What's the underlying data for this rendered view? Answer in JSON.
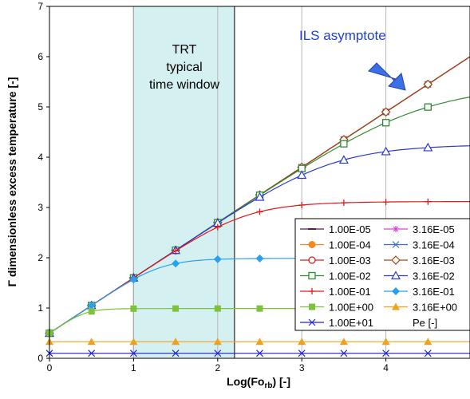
{
  "chart_data": {
    "type": "line",
    "xlabel": "Log(Fo",
    "xlabel_sub": "rb",
    "xlabel_suffix": ") [-]",
    "ylabel": "Γ dimensionless excess temperature [-]",
    "xlim": [
      0,
      5
    ],
    "ylim": [
      0,
      7
    ],
    "x_ticks": [
      "0",
      "1",
      "2",
      "3",
      "4"
    ],
    "y_ticks": [
      "0",
      "1",
      "2",
      "3",
      "4",
      "5",
      "6",
      "7"
    ],
    "grid": "vertical",
    "window": {
      "x_start": 1.0,
      "x_end": 2.2,
      "lines": [
        "TRT",
        "typical",
        "time window"
      ]
    },
    "annotation": {
      "text": "ILS asymptote",
      "arrow_color": "#3366e6"
    },
    "legend": {
      "placement": "bottom-right",
      "title": "Pe [-]"
    },
    "marker_x": [
      0,
      0.5,
      1,
      1.5,
      2,
      2.5,
      3,
      3.5,
      4,
      4.5
    ],
    "series": [
      {
        "name": "1.00E-05",
        "plateau": null,
        "color": "#5b1a4d",
        "marker": "dash"
      },
      {
        "name": "3.16E-05",
        "plateau": null,
        "color": "#e040e0",
        "marker": "star"
      },
      {
        "name": "1.00E-04",
        "plateau": null,
        "color": "#f08a1e",
        "marker": "circle-filled"
      },
      {
        "name": "3.16E-04",
        "plateau": null,
        "color": "#3a6ad8",
        "marker": "x"
      },
      {
        "name": "1.00E-03",
        "plateau": null,
        "color": "#d42020",
        "marker": "circle-open"
      },
      {
        "name": "3.16E-03",
        "plateau": null,
        "color": "#9c4a10",
        "marker": "diamond-open"
      },
      {
        "name": "1.00E-02",
        "plateau": 5.45,
        "color": "#2e8b2e",
        "marker": "square-open"
      },
      {
        "name": "3.16E-02",
        "plateau": 4.26,
        "color": "#2b3ad8",
        "marker": "triangle-open"
      },
      {
        "name": "1.00E-01",
        "plateau": 3.12,
        "color": "#e01a1a",
        "marker": "plus"
      },
      {
        "name": "3.16E-01",
        "plateau": 1.99,
        "color": "#2aa0ee",
        "marker": "diamond-filled"
      },
      {
        "name": "1.00E+00",
        "plateau": 0.99,
        "color": "#7cc23a",
        "marker": "square-filled"
      },
      {
        "name": "3.16E+00",
        "plateau": 0.33,
        "color": "#f0a020",
        "marker": "triangle-filled"
      },
      {
        "name": "1.00E+01",
        "plateau": 0.1,
        "color": "#2222dd",
        "marker": "x"
      }
    ]
  }
}
